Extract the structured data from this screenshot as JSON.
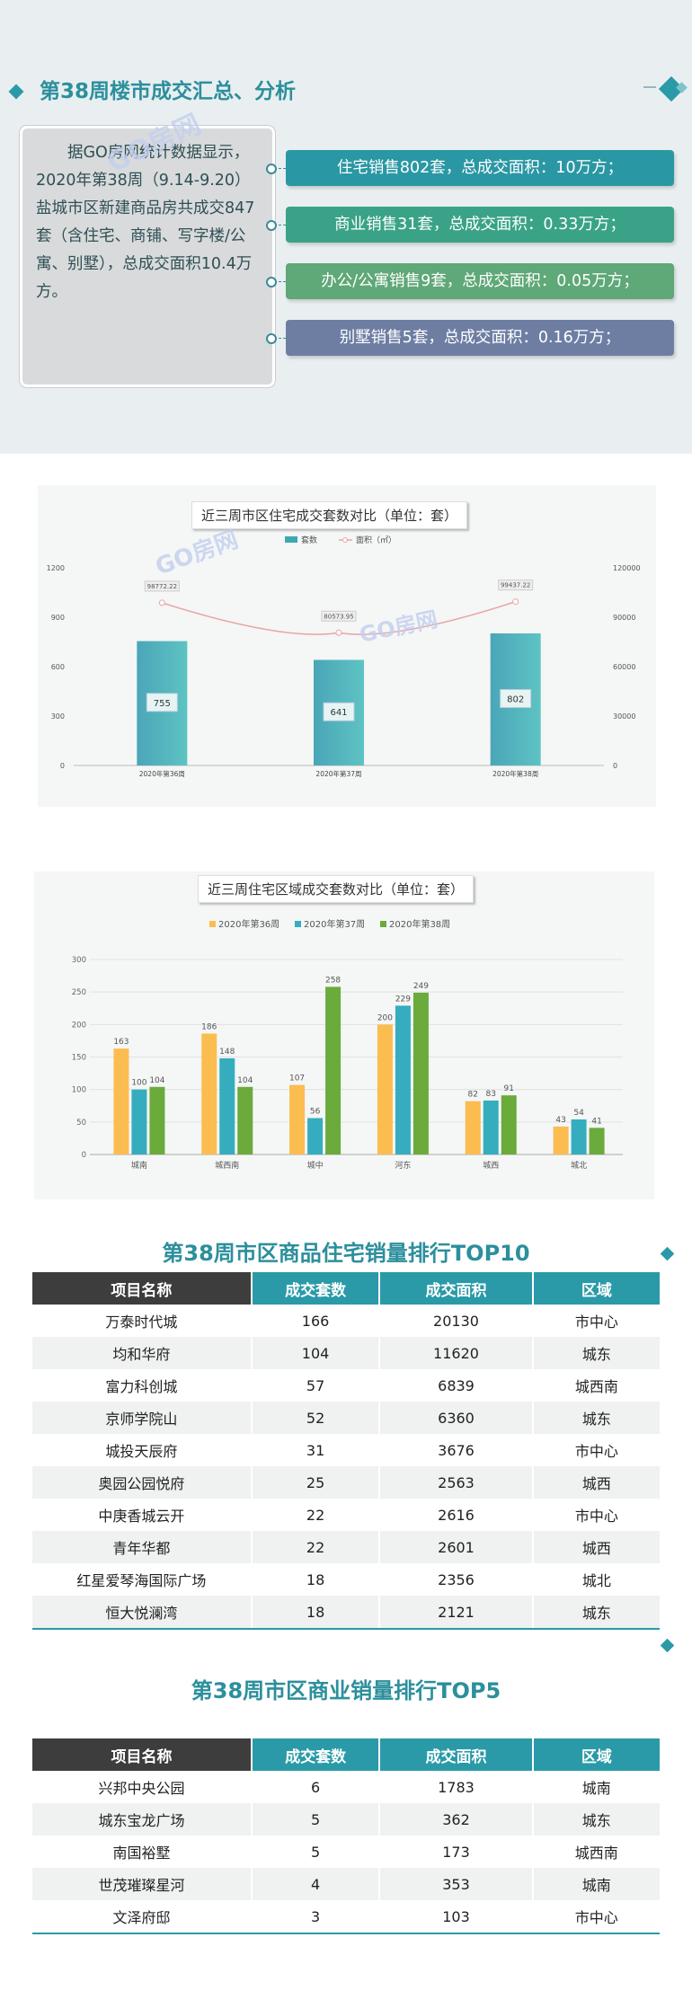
{
  "summary": {
    "title": "第38周楼市成交汇总、分析",
    "text": "据GO房网统计数据显示，2020年第38周（9.14-9.20）盐城市区新建商品房共成交847套（含住宅、商铺、写字楼/公寓、别墅），总成交面积10.4万方。",
    "pills": [
      {
        "text": "住宅销售802套，总成交面积：10万方；",
        "color": "#2a97a4"
      },
      {
        "text": "商业销售31套，总成交面积：0.33万方；",
        "color": "#3aa387"
      },
      {
        "text": "办公/公寓销售9套，总成交面积：0.05万方；",
        "color": "#5fa877"
      },
      {
        "text": "别墅销售5套，总成交面积：0.16万方；",
        "color": "#6e7ea3"
      }
    ],
    "watermark": "GO房网"
  },
  "chart_data": [
    {
      "type": "bar",
      "title": "近三周市区住宅成交套数对比（单位：套）",
      "categories": [
        "2020年第36周",
        "2020年第37周",
        "2020年第38周"
      ],
      "series": [
        {
          "name": "套数",
          "type": "bar",
          "values": [
            755,
            641,
            802
          ],
          "color": "#3aaab2"
        },
        {
          "name": "面积（㎡）",
          "type": "line",
          "values": [
            98772.22,
            80573.95,
            99437.22
          ],
          "color": "#e8a3a3",
          "labels": [
            "98772.22",
            "80573.95",
            "99437.22"
          ]
        }
      ],
      "ylim": [
        0,
        1200
      ],
      "yticks": [
        "0",
        "300",
        "600",
        "900",
        "1200"
      ],
      "y2lim": [
        0,
        120000
      ],
      "y2ticks": [
        "0",
        "30000",
        "60000",
        "90000",
        "120000"
      ],
      "legend": "top-center"
    },
    {
      "type": "bar",
      "title": "近三周住宅区域成交套数对比（单位：套）",
      "categories": [
        "城南",
        "城西南",
        "城中",
        "河东",
        "城西",
        "城北"
      ],
      "series": [
        {
          "name": "2020年第36周",
          "values": [
            163,
            186,
            107,
            200,
            82,
            43
          ],
          "color": "#fbbd4f"
        },
        {
          "name": "2020年第37周",
          "values": [
            100,
            148,
            56,
            229,
            83,
            54
          ],
          "color": "#35adbf"
        },
        {
          "name": "2020年第38周",
          "values": [
            104,
            104,
            258,
            249,
            91,
            41
          ],
          "color": "#6aab3c"
        }
      ],
      "ylim": [
        0,
        300
      ],
      "yticks": [
        "0",
        "50",
        "100",
        "150",
        "200",
        "250",
        "300"
      ],
      "grid": true,
      "legend": "top-center"
    }
  ],
  "top10": {
    "title": "第38周市区商品住宅销量排行TOP10",
    "headers": [
      "项目名称",
      "成交套数",
      "成交面积",
      "区域"
    ],
    "rows": [
      [
        "万泰时代城",
        "166",
        "20130",
        "市中心"
      ],
      [
        "均和华府",
        "104",
        "11620",
        "城东"
      ],
      [
        "富力科创城",
        "57",
        "6839",
        "城西南"
      ],
      [
        "京师学院山",
        "52",
        "6360",
        "城东"
      ],
      [
        "城投天辰府",
        "31",
        "3676",
        "市中心"
      ],
      [
        "奥园公园悦府",
        "25",
        "2563",
        "城西"
      ],
      [
        "中庚香城云开",
        "22",
        "2616",
        "市中心"
      ],
      [
        "青年华都",
        "22",
        "2601",
        "城西"
      ],
      [
        "红星爱琴海国际广场",
        "18",
        "2356",
        "城北"
      ],
      [
        "恒大悦澜湾",
        "18",
        "2121",
        "城东"
      ]
    ]
  },
  "top5": {
    "title": "第38周市区商业销量排行TOP5",
    "headers": [
      "项目名称",
      "成交套数",
      "成交面积",
      "区域"
    ],
    "rows": [
      [
        "兴邦中央公园",
        "6",
        "1783",
        "城南"
      ],
      [
        "城东宝龙广场",
        "5",
        "362",
        "城东"
      ],
      [
        "南国裕墅",
        "5",
        "173",
        "城西南"
      ],
      [
        "世茂璀璨星河",
        "4",
        "353",
        "城南"
      ],
      [
        "文泽府邸",
        "3",
        "103",
        "市中心"
      ]
    ]
  }
}
